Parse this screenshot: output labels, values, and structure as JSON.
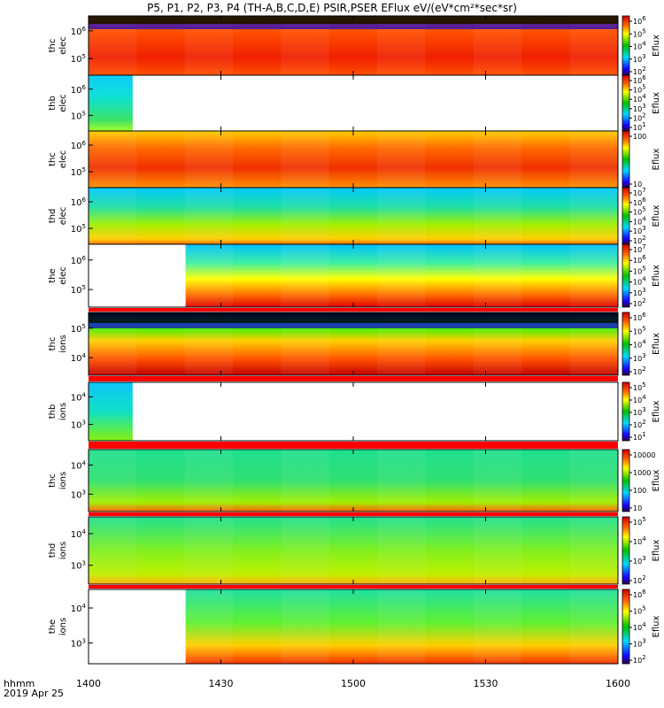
{
  "title": "P5, P1, P2, P3, P4 (TH-A,B,C,D,E) PSIR,PSER EFlux eV/(eV*cm²*sec*sr)",
  "time_axis": {
    "ticks": [
      "1400",
      "1430",
      "1500",
      "1530",
      "1600"
    ],
    "unit_label": "hhmm",
    "date_label": "2019 Apr 25"
  },
  "colorbar_label": "Eflux",
  "chart_data": [
    {
      "type": "heatmap",
      "ylabel": "thc elec",
      "y_ticks": [
        "10⁶",
        "10⁵"
      ],
      "colorbar_ticks": [
        "10⁶",
        "10⁵",
        "10⁴",
        "10³",
        "10²"
      ]
    },
    {
      "type": "heatmap",
      "ylabel": "thb elec",
      "y_ticks": [
        "10⁶",
        "10⁵"
      ],
      "colorbar_ticks": [
        "10⁶",
        "10⁵",
        "10⁴",
        "10³",
        "10²",
        "10¹"
      ],
      "data_until": "1410"
    },
    {
      "type": "heatmap",
      "ylabel": "thc elec",
      "y_ticks": [
        "10⁶",
        "10⁵"
      ],
      "colorbar_ticks": [
        "100",
        "10"
      ]
    },
    {
      "type": "heatmap",
      "ylabel": "thd elec",
      "y_ticks": [
        "10⁶",
        "10⁵"
      ],
      "colorbar_ticks": [
        "10⁷",
        "10⁶",
        "10⁵",
        "10⁴",
        "10³",
        "10²"
      ]
    },
    {
      "type": "heatmap",
      "ylabel": "the elec",
      "y_ticks": [
        "10⁶",
        "10⁵"
      ],
      "colorbar_ticks": [
        "10⁷",
        "10⁶",
        "10⁵",
        "10⁴",
        "10³",
        "10²"
      ],
      "data_from": "1422"
    },
    {
      "type": "heatmap",
      "ylabel": "thc ions",
      "y_ticks": [
        "10⁵",
        "10⁴"
      ],
      "colorbar_ticks": [
        "10⁶",
        "10⁵",
        "10⁴",
        "10³",
        "10²"
      ]
    },
    {
      "type": "heatmap",
      "ylabel": "thb ions",
      "y_ticks": [
        "10⁴",
        "10³"
      ],
      "colorbar_ticks": [
        "10⁵",
        "10⁴",
        "10³",
        "10²",
        "10¹"
      ],
      "data_until": "1410"
    },
    {
      "type": "heatmap",
      "ylabel": "thc ions",
      "y_ticks": [
        "10⁴",
        "10³"
      ],
      "colorbar_ticks": [
        "10000",
        "1000",
        "100",
        "10"
      ]
    },
    {
      "type": "heatmap",
      "ylabel": "thd ions",
      "y_ticks": [
        "10⁴",
        "10³"
      ],
      "colorbar_ticks": [
        "10⁵",
        "10⁴",
        "10³",
        "10²"
      ]
    },
    {
      "type": "heatmap",
      "ylabel": "the ions",
      "y_ticks": [
        "10⁴",
        "10³"
      ],
      "colorbar_ticks": [
        "10⁶",
        "10⁵",
        "10⁴",
        "10³",
        "10²"
      ],
      "data_from": "1422"
    }
  ]
}
